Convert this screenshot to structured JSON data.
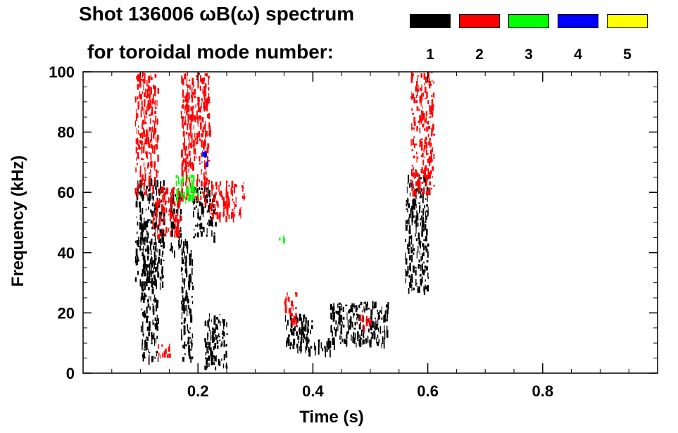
{
  "title_line1": "Shot 136006 ωB(ω) spectrum",
  "title_line2": "for toroidal mode number:",
  "legend": [
    {
      "mode": "1",
      "color": "#000000"
    },
    {
      "mode": "2",
      "color": "#ff0000"
    },
    {
      "mode": "3",
      "color": "#00ff00"
    },
    {
      "mode": "4",
      "color": "#0000ff"
    },
    {
      "mode": "5",
      "color": "#ffff00"
    }
  ],
  "chart_data": {
    "type": "heatmap",
    "title": "Shot 136006 ωB(ω) spectrum",
    "subtitle": "for toroidal mode number:",
    "xlabel": "Time (s)",
    "ylabel": "Frequency (kHz)",
    "xlim": [
      0.0,
      1.0
    ],
    "ylim": [
      0,
      100
    ],
    "x_ticks": [
      "0.2",
      "0.4",
      "0.6",
      "0.8"
    ],
    "x_tick_values": [
      0.2,
      0.4,
      0.6,
      0.8
    ],
    "y_ticks": [
      "0",
      "20",
      "40",
      "60",
      "80",
      "100"
    ],
    "y_tick_values": [
      0,
      20,
      40,
      60,
      80,
      100
    ],
    "grid": false,
    "legend_position": "top-right",
    "series": [
      {
        "mode": "1",
        "color": "#000000",
        "regions": [
          {
            "t": [
              0.09,
              0.14
            ],
            "f": [
              30,
              65
            ]
          },
          {
            "t": [
              0.1,
              0.13
            ],
            "f": [
              5,
              40
            ]
          },
          {
            "t": [
              0.15,
              0.17
            ],
            "f": [
              40,
              60
            ]
          },
          {
            "t": [
              0.17,
              0.19
            ],
            "f": [
              5,
              45
            ]
          },
          {
            "t": [
              0.19,
              0.23
            ],
            "f": [
              45,
              62
            ]
          },
          {
            "t": [
              0.21,
              0.25
            ],
            "f": [
              2,
              20
            ]
          },
          {
            "t": [
              0.35,
              0.4
            ],
            "f": [
              8,
              20
            ]
          },
          {
            "t": [
              0.4,
              0.43
            ],
            "f": [
              7,
              12
            ]
          },
          {
            "t": [
              0.43,
              0.53
            ],
            "f": [
              10,
              24
            ]
          },
          {
            "t": [
              0.56,
              0.6
            ],
            "f": [
              28,
              66
            ]
          }
        ]
      },
      {
        "mode": "2",
        "color": "#ff0000",
        "regions": [
          {
            "t": [
              0.09,
              0.13
            ],
            "f": [
              60,
              100
            ]
          },
          {
            "t": [
              0.12,
              0.17
            ],
            "f": [
              46,
              62
            ]
          },
          {
            "t": [
              0.17,
              0.22
            ],
            "f": [
              58,
              100
            ]
          },
          {
            "t": [
              0.22,
              0.28
            ],
            "f": [
              52,
              64
            ]
          },
          {
            "t": [
              0.35,
              0.37
            ],
            "f": [
              17,
              27
            ]
          },
          {
            "t": [
              0.48,
              0.5
            ],
            "f": [
              15,
              20
            ]
          },
          {
            "t": [
              0.57,
              0.61
            ],
            "f": [
              60,
              100
            ]
          },
          {
            "t": [
              0.13,
              0.15
            ],
            "f": [
              5,
              10
            ]
          }
        ]
      },
      {
        "mode": "3",
        "color": "#00ff00",
        "regions": [
          {
            "t": [
              0.16,
              0.2
            ],
            "f": [
              58,
              66
            ]
          },
          {
            "t": [
              0.34,
              0.35
            ],
            "f": [
              44,
              46
            ]
          }
        ]
      },
      {
        "mode": "4",
        "color": "#0000ff",
        "regions": [
          {
            "t": [
              0.205,
              0.215
            ],
            "f": [
              70,
              75
            ]
          }
        ]
      },
      {
        "mode": "5",
        "color": "#ffff00",
        "regions": []
      }
    ]
  }
}
